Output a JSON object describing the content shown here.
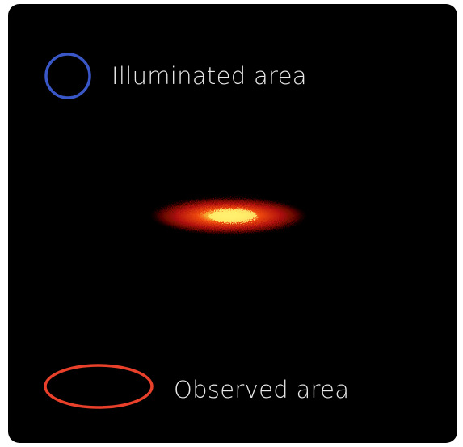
{
  "legend": {
    "items": [
      {
        "label": "Illuminated area"
      },
      {
        "label": "Observed area"
      }
    ]
  }
}
